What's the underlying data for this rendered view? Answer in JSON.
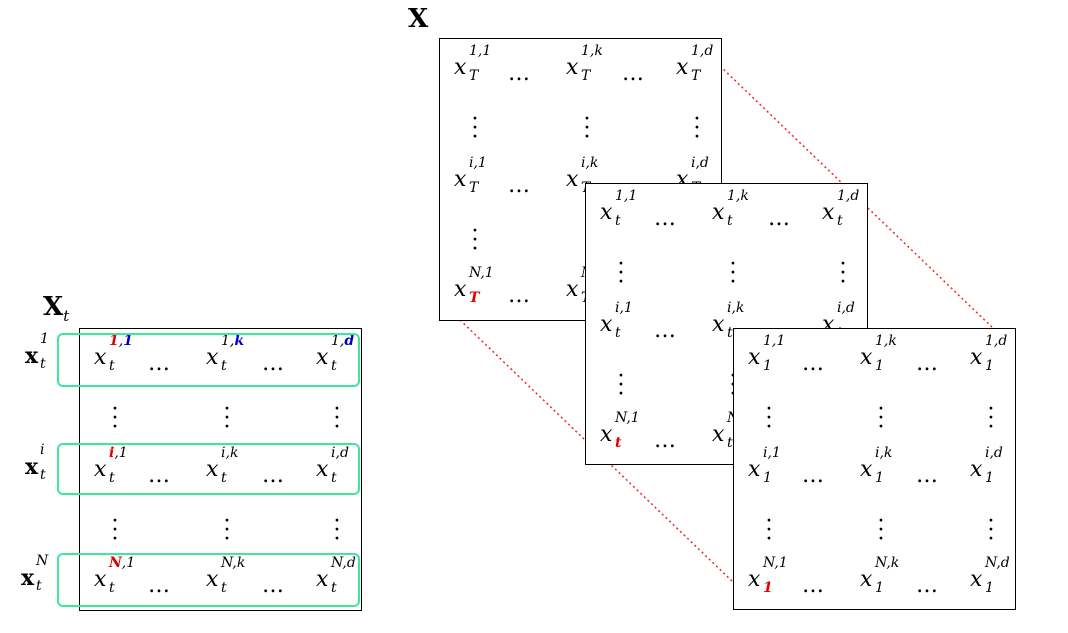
{
  "title_x": "X",
  "title_xt_main": "X",
  "title_xt_sub": "t",
  "row_vectors": [
    {
      "main": "x",
      "sup": "1",
      "sub": "t"
    },
    {
      "main": "x",
      "sup": "i",
      "sub": "t"
    },
    {
      "main": "x",
      "sup": "N",
      "sub": "t"
    }
  ],
  "xt_matrix": {
    "rows": [
      [
        {
          "main": "x",
          "sup_a": "1",
          "sup_sep": ",",
          "sup_b": "1",
          "sub": "t",
          "sup_a_color": "#e00000",
          "sup_b_color": "#0000cc"
        },
        {
          "main": "x",
          "sup_a": "1",
          "sup_sep": ",",
          "sup_b": "k",
          "sub": "t",
          "sup_b_color": "#0000cc"
        },
        {
          "main": "x",
          "sup_a": "1",
          "sup_sep": ",",
          "sup_b": "d",
          "sub": "t",
          "sup_b_color": "#0000cc"
        }
      ],
      [
        {
          "main": "x",
          "sup_a": "i",
          "sup_sep": ",",
          "sup_b": "1",
          "sub": "t",
          "sup_a_color": "#e00000"
        },
        {
          "main": "x",
          "sup_a": "i",
          "sup_sep": ",",
          "sup_b": "k",
          "sub": "t"
        },
        {
          "main": "x",
          "sup_a": "i",
          "sup_sep": ",",
          "sup_b": "d",
          "sub": "t"
        }
      ],
      [
        {
          "main": "x",
          "sup_a": "N",
          "sup_sep": ",",
          "sup_b": "1",
          "sub": "t",
          "sup_a_color": "#e00000"
        },
        {
          "main": "x",
          "sup_a": "N",
          "sup_sep": ",",
          "sup_b": "k",
          "sub": "t"
        },
        {
          "main": "x",
          "sup_a": "N",
          "sup_sep": ",",
          "sup_b": "d",
          "sub": "t"
        }
      ]
    ]
  },
  "back_matrix": {
    "sub": "T",
    "cells": [
      "1,1",
      "1,k",
      "1,d",
      "i,1",
      "i,k",
      "i,d",
      "N,1",
      "N"
    ]
  },
  "mid_matrix": {
    "sub": "t",
    "cells": [
      "1,1",
      "1,k",
      "1,d",
      "i,1",
      "i,k",
      "i,d",
      "N,1",
      "N"
    ]
  },
  "front_matrix": {
    "sub": "1",
    "cells": [
      "1,1",
      "1,k",
      "1,d",
      "i,1",
      "i,k",
      "i,d",
      "N,1",
      "N,k",
      "N,d"
    ]
  },
  "dots_text": "…",
  "colors": {
    "highlight": "#3ee6a0",
    "red": "#e00000",
    "blue": "#0000cc",
    "dotted": "#ff2020"
  }
}
